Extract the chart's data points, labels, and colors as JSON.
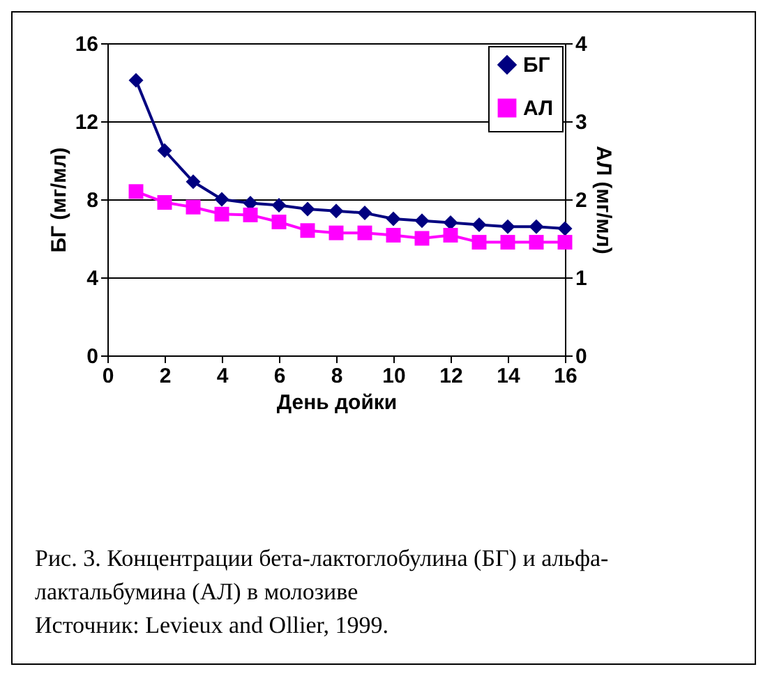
{
  "chart_data": {
    "type": "line",
    "xlabel": "День дойки",
    "ylabel": "БГ (мг/мл)",
    "y2label": "АЛ (мг/мл)",
    "x": [
      1,
      2,
      3,
      4,
      5,
      6,
      7,
      8,
      9,
      10,
      11,
      12,
      13,
      14,
      15,
      16
    ],
    "series": [
      {
        "name": "БГ",
        "color": "#000080",
        "marker": "diamond",
        "values": [
          14.1,
          10.5,
          8.9,
          8.0,
          7.8,
          7.7,
          7.5,
          7.4,
          7.3,
          7.0,
          6.9,
          6.8,
          6.7,
          6.6,
          6.6,
          6.5
        ]
      },
      {
        "name": "АЛ",
        "color": "#ff00ff",
        "marker": "square",
        "axis": "y2",
        "values": [
          2.1,
          1.96,
          1.9,
          1.81,
          1.8,
          1.71,
          1.6,
          1.57,
          1.57,
          1.54,
          1.5,
          1.54,
          1.45,
          1.45,
          1.45,
          1.45
        ]
      }
    ],
    "xlim": [
      0,
      16
    ],
    "xticks": [
      0,
      2,
      4,
      6,
      8,
      10,
      12,
      14,
      16
    ],
    "ylim": [
      0,
      16
    ],
    "yticks": [
      0,
      4,
      8,
      12,
      16
    ],
    "y2lim": [
      0,
      4
    ],
    "y2ticks": [
      0,
      1,
      2,
      3,
      4
    ],
    "grid": "y",
    "legend": "top right",
    "line_style": "solid",
    "annotations": [
      "Рис. 3. Концентрации бета-лактоглобулина (БГ) и альфа-лактальбумина (АЛ) в молозиве",
      "Источник: Levieux and Ollier, 1999."
    ]
  }
}
